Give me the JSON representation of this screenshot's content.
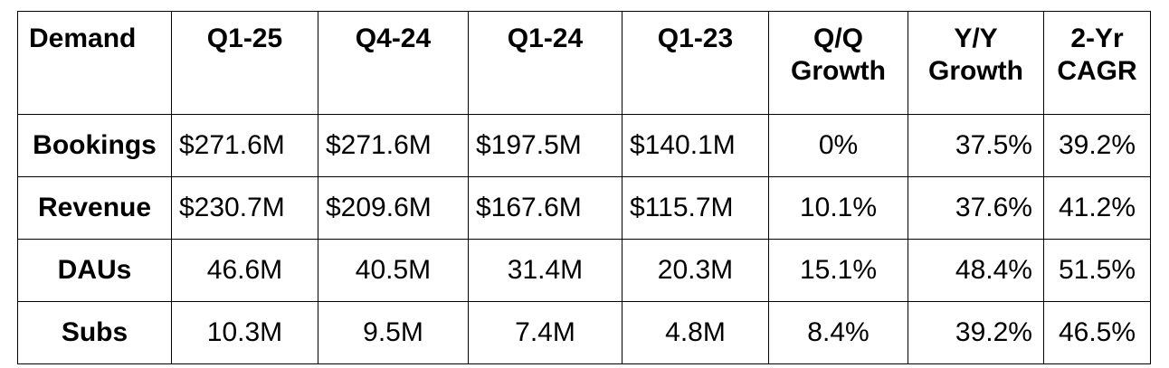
{
  "table": {
    "headers": [
      [
        "Demand"
      ],
      [
        "Q1-25"
      ],
      [
        "Q4-24"
      ],
      [
        "Q1-24"
      ],
      [
        "Q1-23"
      ],
      [
        "Q/Q",
        "Growth"
      ],
      [
        "Y/Y",
        "Growth"
      ],
      [
        "2-Yr",
        "CAGR"
      ]
    ],
    "rows": [
      {
        "label": "Bookings",
        "q1_25": "$271.6M",
        "q4_24": "$271.6M",
        "q1_24": "$197.5M",
        "q1_23": "$140.1M",
        "qq_growth": "0%",
        "yy_growth": "37.5%",
        "cagr_2yr": "39.2%"
      },
      {
        "label": "Revenue",
        "q1_25": "$230.7M",
        "q4_24": "$209.6M",
        "q1_24": "$167.6M",
        "q1_23": "$115.7M",
        "qq_growth": "10.1%",
        "yy_growth": "37.6%",
        "cagr_2yr": "41.2%"
      },
      {
        "label": "DAUs",
        "q1_25": "46.6M",
        "q4_24": "40.5M",
        "q1_24": "31.4M",
        "q1_23": "20.3M",
        "qq_growth": "15.1%",
        "yy_growth": "48.4%",
        "cagr_2yr": "51.5%"
      },
      {
        "label": "Subs",
        "q1_25": "10.3M",
        "q4_24": "9.5M",
        "q1_24": "7.4M",
        "q1_23": "4.8M",
        "qq_growth": "8.4%",
        "yy_growth": "39.2%",
        "cagr_2yr": "46.5%"
      }
    ]
  }
}
